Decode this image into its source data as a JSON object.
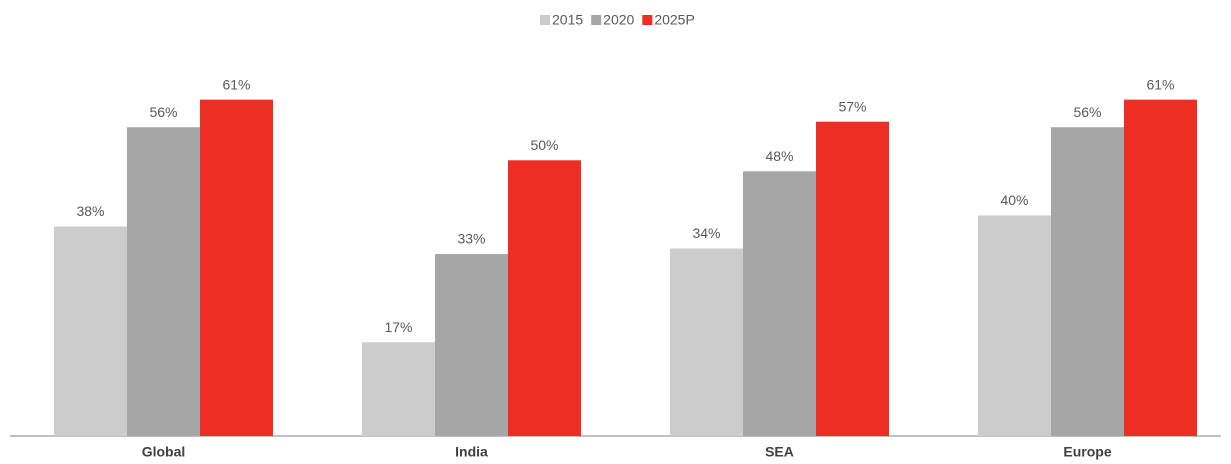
{
  "chart_data": {
    "type": "bar",
    "categories": [
      "Global",
      "India",
      "SEA",
      "Europe"
    ],
    "series": [
      {
        "name": "2015",
        "color": "#cccccc",
        "values": [
          38,
          17,
          34,
          40
        ],
        "value_labels": [
          "38%",
          "17%",
          "34%",
          "40%"
        ]
      },
      {
        "name": "2020",
        "color": "#a6a6a6",
        "values": [
          56,
          33,
          48,
          56
        ],
        "value_labels": [
          "56%",
          "33%",
          "48%",
          "56%"
        ]
      },
      {
        "name": "2025P",
        "color": "#ee2d24",
        "values": [
          61,
          50,
          57,
          61
        ],
        "value_labels": [
          "61%",
          "50%",
          "57%",
          "61%"
        ]
      }
    ],
    "ylim": [
      0,
      70
    ],
    "legend": "top"
  }
}
